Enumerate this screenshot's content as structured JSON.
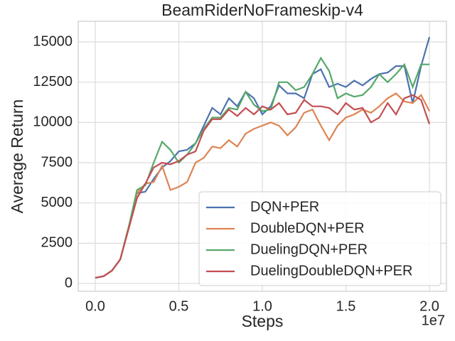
{
  "chart_data": {
    "type": "line",
    "title": "BeamRiderNoFrameskip-v4",
    "xlabel": "Steps",
    "ylabel": "Average Return",
    "x_offset_label": "1e7",
    "x": [
      0,
      500000,
      1000000,
      1500000,
      2000000,
      2500000,
      3000000,
      3500000,
      4000000,
      4500000,
      5000000,
      5500000,
      6000000,
      6500000,
      7000000,
      7500000,
      8000000,
      8500000,
      9000000,
      9500000,
      10000000,
      10500000,
      11000000,
      11500000,
      12000000,
      12500000,
      13000000,
      13500000,
      14000000,
      14500000,
      15000000,
      15500000,
      16000000,
      16500000,
      17000000,
      17500000,
      18000000,
      18500000,
      19000000,
      19500000,
      20000000
    ],
    "series": [
      {
        "name": "DQN+PER",
        "color": "#4c72b0",
        "values": [
          350,
          450,
          800,
          1500,
          3500,
          5600,
          5700,
          6500,
          7200,
          7600,
          8200,
          8300,
          8700,
          9800,
          10900,
          10500,
          11500,
          11000,
          11900,
          11500,
          10500,
          11000,
          12300,
          11800,
          11800,
          11500,
          13000,
          13300,
          12200,
          12400,
          12200,
          12600,
          12300,
          12700,
          13000,
          13100,
          13500,
          13500,
          11200,
          13500,
          15300
        ]
      },
      {
        "name": "DoubleDQN+PER",
        "color": "#dd8452",
        "values": [
          350,
          450,
          800,
          1500,
          3500,
          5600,
          6200,
          6300,
          7300,
          5800,
          6000,
          6300,
          7500,
          7800,
          8500,
          8400,
          8900,
          8500,
          9300,
          9600,
          9800,
          10000,
          9800,
          9200,
          9700,
          10600,
          10800,
          9800,
          8900,
          9800,
          10300,
          10500,
          10800,
          10600,
          11000,
          11500,
          11800,
          11300,
          11200,
          11700,
          10700
        ]
      },
      {
        "name": "DuelingDQN+PER",
        "color": "#55a868",
        "values": [
          350,
          450,
          800,
          1500,
          3500,
          5800,
          6100,
          7500,
          8800,
          8300,
          7500,
          8000,
          8700,
          9600,
          10300,
          10300,
          10900,
          10800,
          11900,
          11100,
          10700,
          10800,
          12500,
          12500,
          12000,
          12200,
          13000,
          14000,
          13200,
          11500,
          11800,
          11600,
          11700,
          12200,
          13000,
          12500,
          13000,
          13600,
          12200,
          13600,
          13600
        ]
      },
      {
        "name": "DuelingDoubleDQN+PER",
        "color": "#c44e52",
        "values": [
          350,
          450,
          800,
          1500,
          3400,
          5300,
          6200,
          7200,
          7500,
          7400,
          7600,
          8000,
          8200,
          9500,
          10200,
          10200,
          10800,
          10400,
          10900,
          10500,
          11000,
          10800,
          11200,
          10500,
          10600,
          11400,
          11000,
          11000,
          10900,
          10500,
          11200,
          10800,
          10900,
          10000,
          10300,
          11200,
          10500,
          11500,
          11700,
          11400,
          9900
        ]
      }
    ],
    "xlim": [
      -1020000,
      21020000
    ],
    "xticks": [
      {
        "value": 0,
        "label": "0.0"
      },
      {
        "value": 5000000,
        "label": "0.5"
      },
      {
        "value": 10000000,
        "label": "1.0"
      },
      {
        "value": 15000000,
        "label": "1.5"
      },
      {
        "value": 20000000,
        "label": "2.0"
      }
    ],
    "ylim": [
      -485,
      16280
    ],
    "yticks": [
      0,
      2500,
      5000,
      7500,
      10000,
      12500,
      15000
    ],
    "grid": true,
    "legend": "lower right"
  }
}
